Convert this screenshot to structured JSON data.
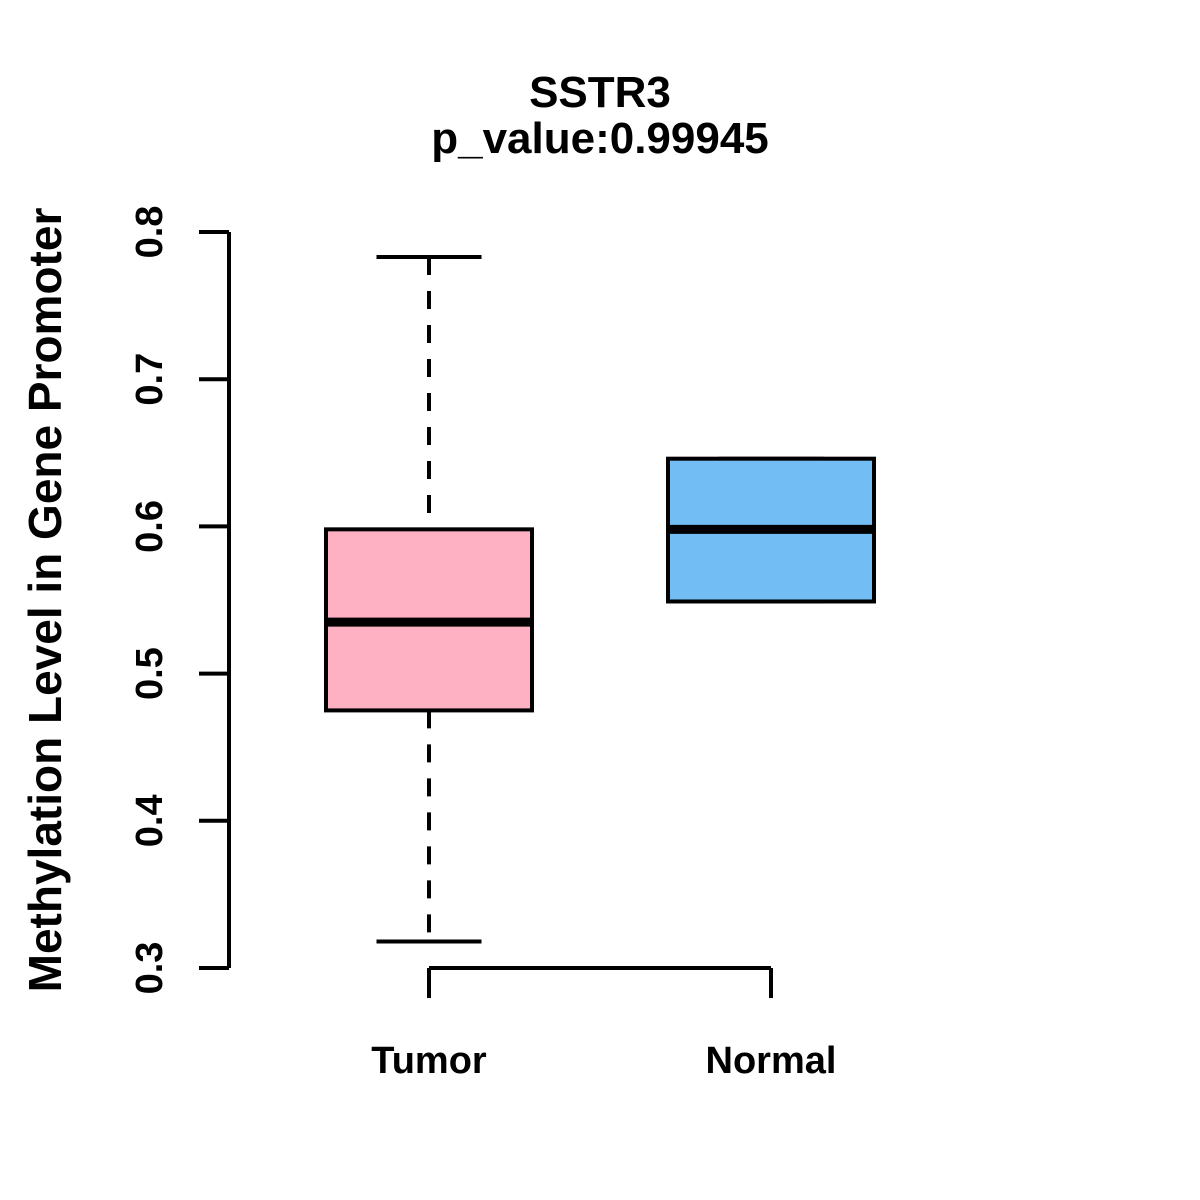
{
  "figure": {
    "title": "SSTR3",
    "subtitle": "p_value:0.99945",
    "ylabel": "Methylation Level in Gene Promoter"
  },
  "chart_data": {
    "type": "boxplot",
    "title": "SSTR3",
    "subtitle": "p_value:0.99945",
    "xlabel": "",
    "ylabel": "Methylation Level in Gene Promoter",
    "categories": [
      "Tumor",
      "Normal"
    ],
    "series": [
      {
        "name": "Tumor",
        "min": 0.318,
        "q1": 0.475,
        "median": 0.535,
        "q3": 0.598,
        "max": 0.783,
        "fill_color": "#FDB1C2"
      },
      {
        "name": "Normal",
        "min": 0.549,
        "q1": 0.549,
        "median": 0.598,
        "q3": 0.646,
        "max": 0.646,
        "fill_color": "#73BDF5"
      }
    ],
    "ylim": [
      0.3,
      0.8
    ],
    "yticks": [
      "0.3",
      "0.4",
      "0.5",
      "0.6",
      "0.7",
      "0.8"
    ],
    "grid": false,
    "legend": "none",
    "outliers": [],
    "colors": {
      "tumor_fill": "#FDB1C2",
      "normal_fill": "#73BDF5",
      "stroke": "#000000",
      "background": "#FFFFFF"
    },
    "style_notes": "R base-graphics boxplot, dashed whiskers, thick median line, rotated y tick labels"
  }
}
